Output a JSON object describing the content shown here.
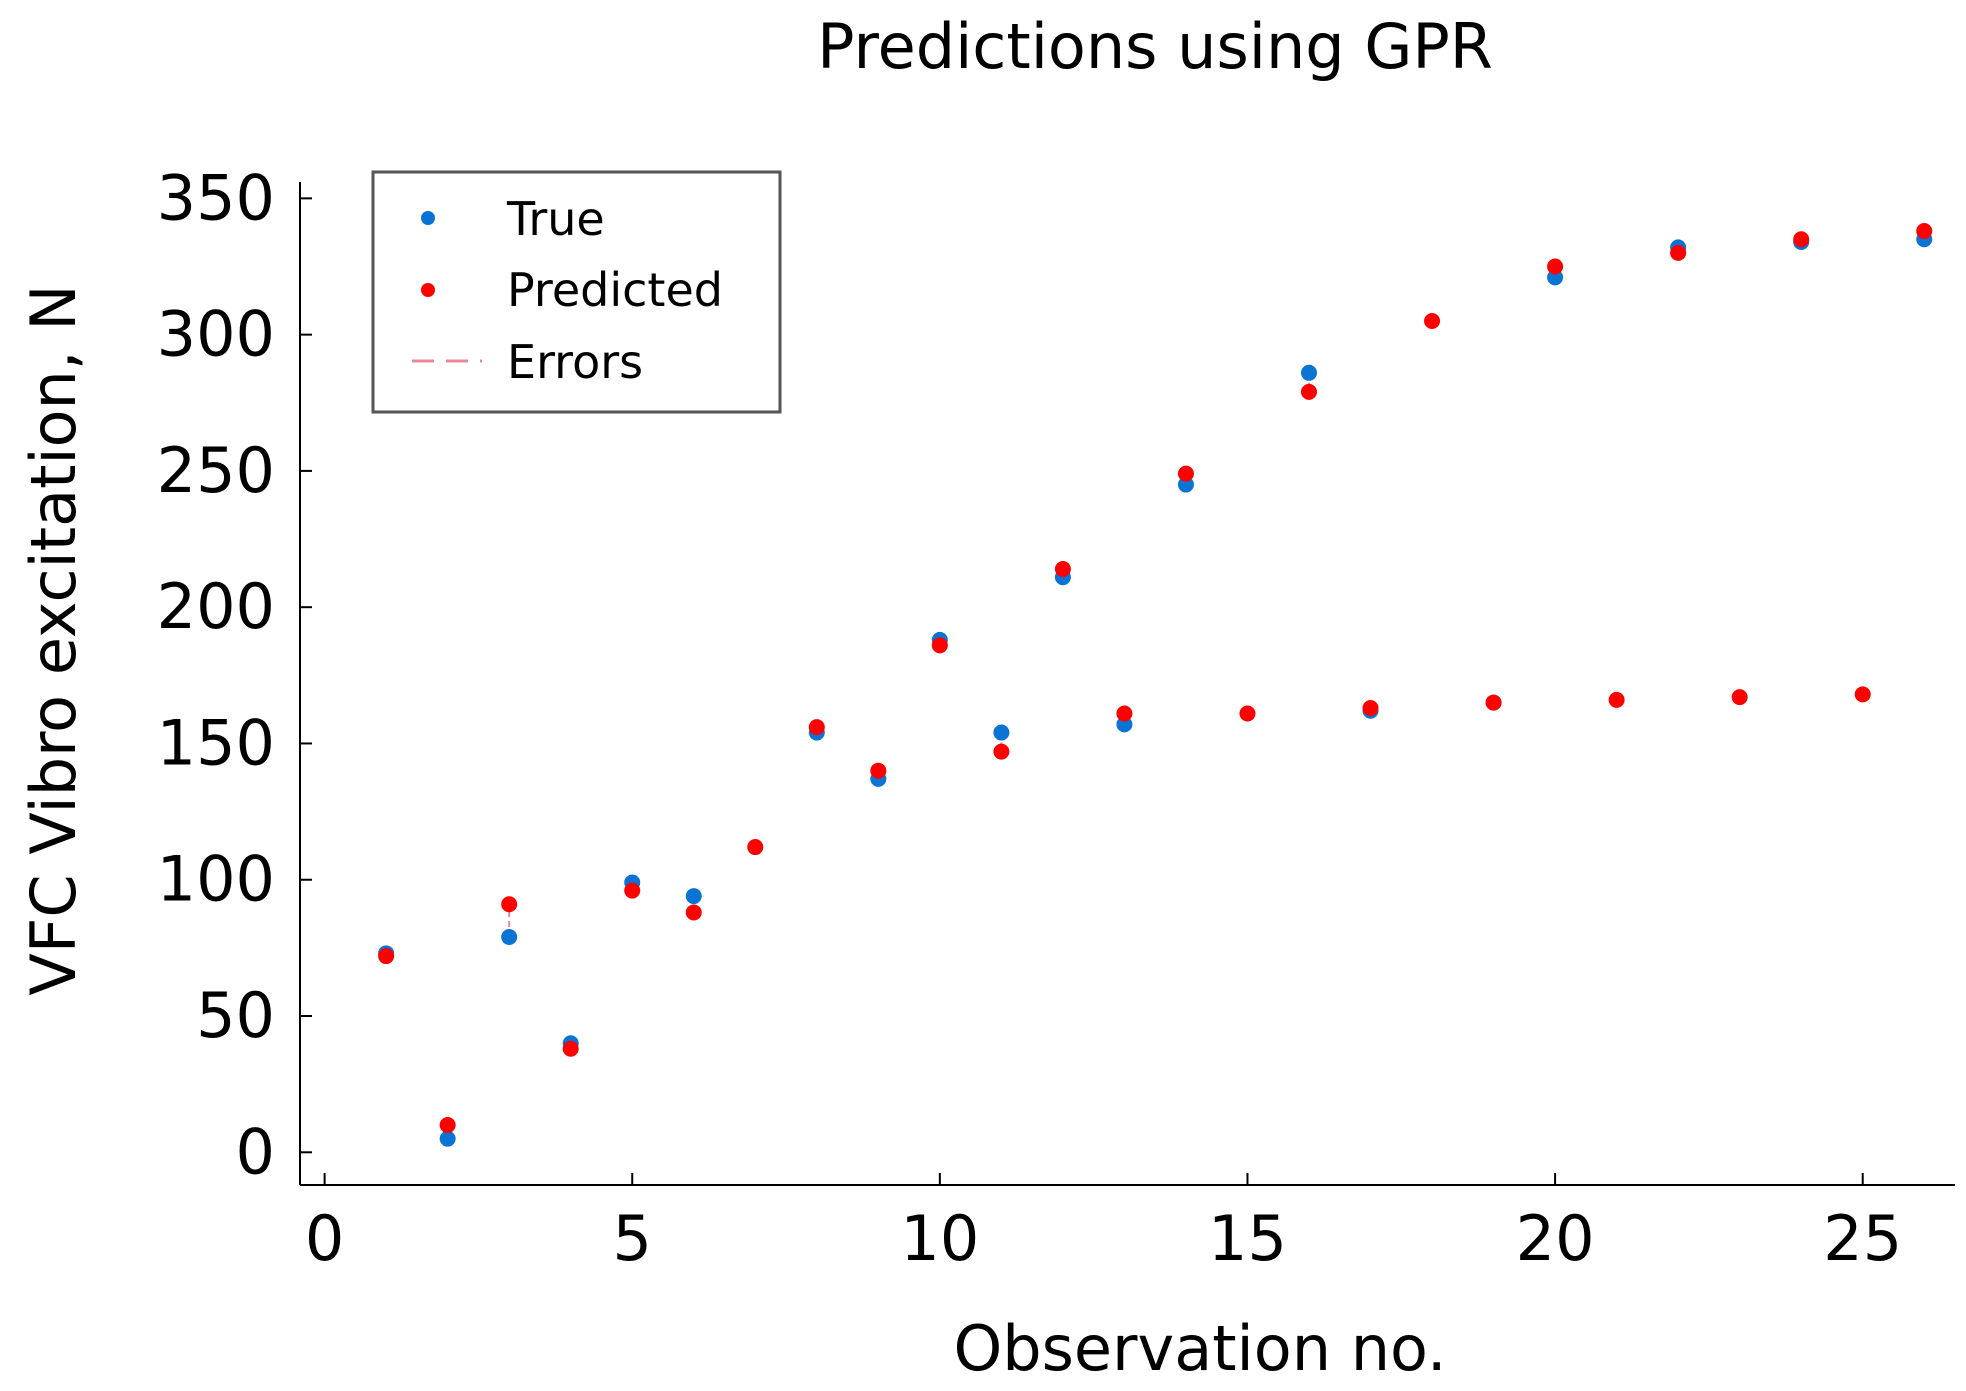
{
  "chart_data": {
    "type": "scatter",
    "title": "Predictions using GPR",
    "xlabel": "Observation no.",
    "ylabel": "VFC Vibro excitation, N",
    "xlim": [
      -0.4,
      26.5
    ],
    "ylim": [
      -12,
      356
    ],
    "xticks": [
      0,
      5,
      10,
      15,
      20,
      25
    ],
    "yticks": [
      0,
      50,
      100,
      150,
      200,
      250,
      300,
      350
    ],
    "legend": {
      "position": "top-left",
      "entries": [
        {
          "label": "True",
          "marker": "dot",
          "color": "#0a74d4"
        },
        {
          "label": "Predicted",
          "marker": "dot",
          "color": "#ff0000"
        },
        {
          "label": "Errors",
          "marker": "dashed-line",
          "color": "#e88a96"
        }
      ]
    },
    "series": [
      {
        "name": "True",
        "color": "#0a74d4",
        "x": [
          1,
          2,
          3,
          4,
          5,
          6,
          8,
          9,
          10,
          11,
          12,
          13,
          14,
          16,
          17,
          19,
          20,
          22,
          24,
          26
        ],
        "y": [
          73,
          5,
          79,
          40,
          99,
          94,
          154,
          137,
          188,
          154,
          211,
          157,
          245,
          286,
          162,
          165,
          321,
          332,
          334,
          335
        ]
      },
      {
        "name": "Predicted",
        "color": "#ff0000",
        "x": [
          1,
          2,
          3,
          4,
          5,
          6,
          7,
          8,
          9,
          10,
          11,
          12,
          13,
          14,
          15,
          16,
          17,
          18,
          19,
          20,
          21,
          22,
          23,
          24,
          25,
          26
        ],
        "y": [
          72,
          10,
          91,
          38,
          96,
          88,
          112,
          156,
          140,
          186,
          147,
          214,
          161,
          249,
          161,
          279,
          163,
          305,
          165,
          325,
          166,
          330,
          167,
          335,
          168,
          338
        ]
      }
    ]
  }
}
